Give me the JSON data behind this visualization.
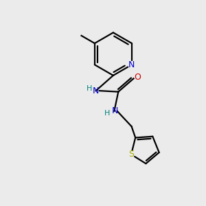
{
  "bg_color": "#ebebeb",
  "bond_color": "#000000",
  "N_color": "#0000cc",
  "O_color": "#cc0000",
  "S_color": "#aaaa00",
  "NH_color": "#008080",
  "line_width": 1.6,
  "figsize": [
    3.0,
    3.0
  ],
  "dpi": 100,
  "xlim": [
    0,
    10
  ],
  "ylim": [
    0,
    10
  ]
}
